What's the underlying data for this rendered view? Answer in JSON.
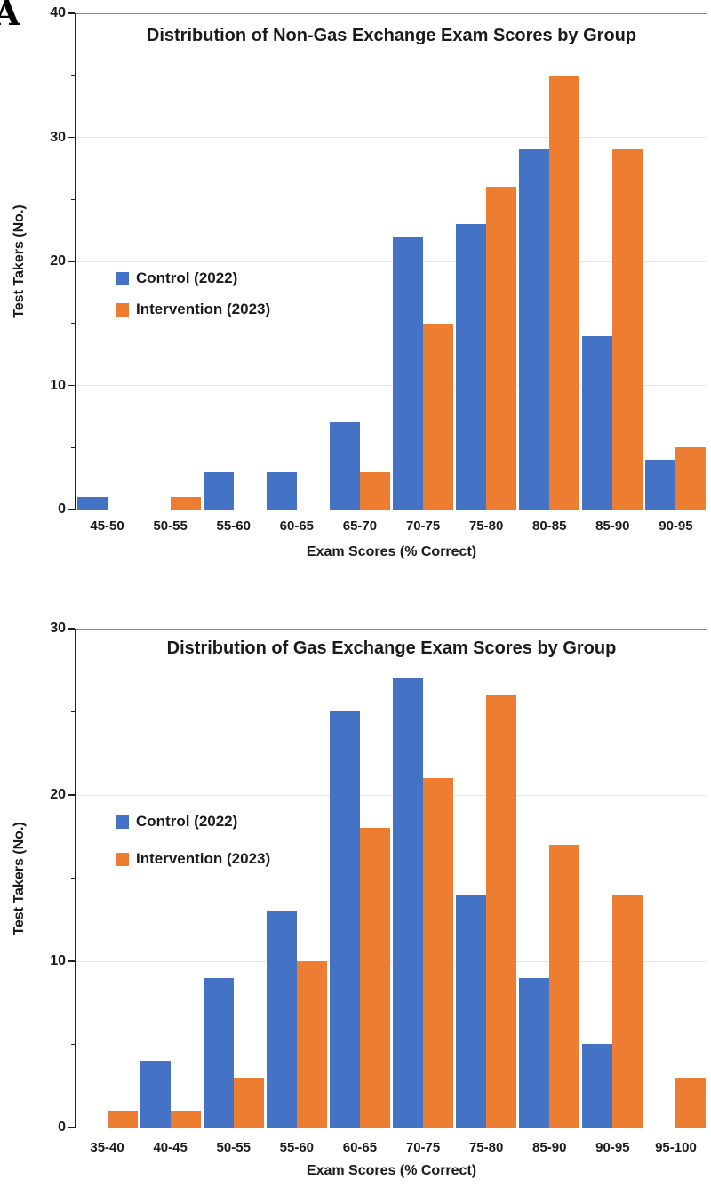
{
  "panel_label": "A",
  "colors": {
    "control": "#4472C4",
    "intervention": "#ED7D31",
    "grid": "#E7E7E7",
    "plot_border": "#8C8C8C",
    "axis": "#1F1F1F",
    "text": "#1A1A1A",
    "background": "#FFFFFF"
  },
  "chart_data": [
    {
      "type": "bar",
      "title": "Distribution of Non-Gas Exchange Exam Scores by Group",
      "xlabel": "Exam Scores (% Correct)",
      "ylabel": "Test Takers (No.)",
      "ylim": [
        0,
        40
      ],
      "yticks": [
        0,
        10,
        20,
        30,
        40
      ],
      "minor_ticks": [
        5,
        15,
        25,
        35
      ],
      "grid": "horizontal",
      "legend_position": "inside-left",
      "categories": [
        "45-50",
        "50-55",
        "55-60",
        "60-65",
        "65-70",
        "70-75",
        "75-80",
        "80-85",
        "85-90",
        "90-95"
      ],
      "series": [
        {
          "name": "Control (2022)",
          "color_key": "control",
          "values": [
            1,
            0,
            3,
            3,
            7,
            22,
            23,
            29,
            14,
            4
          ]
        },
        {
          "name": "Intervention (2023)",
          "color_key": "intervention",
          "values": [
            0,
            1,
            0,
            0,
            3,
            15,
            26,
            35,
            29,
            5
          ]
        }
      ]
    },
    {
      "type": "bar",
      "title": "Distribution of Gas Exchange Exam Scores by Group",
      "xlabel": "Exam Scores (% Correct)",
      "ylabel": "Test Takers (No.)",
      "ylim": [
        0,
        30
      ],
      "yticks": [
        0,
        10,
        20,
        30
      ],
      "minor_ticks": [
        5,
        15,
        25
      ],
      "grid": "horizontal",
      "legend_position": "inside-left",
      "categories": [
        "35-40",
        "40-45",
        "50-55",
        "55-60",
        "60-65",
        "70-75",
        "75-80",
        "85-90",
        "90-95",
        "95-100"
      ],
      "series": [
        {
          "name": "Control (2022)",
          "color_key": "control",
          "values": [
            0,
            4,
            9,
            13,
            25,
            27,
            14,
            9,
            5,
            0
          ]
        },
        {
          "name": "Intervention (2023)",
          "color_key": "intervention",
          "values": [
            1,
            1,
            3,
            10,
            18,
            21,
            26,
            17,
            14,
            3
          ]
        }
      ]
    }
  ]
}
